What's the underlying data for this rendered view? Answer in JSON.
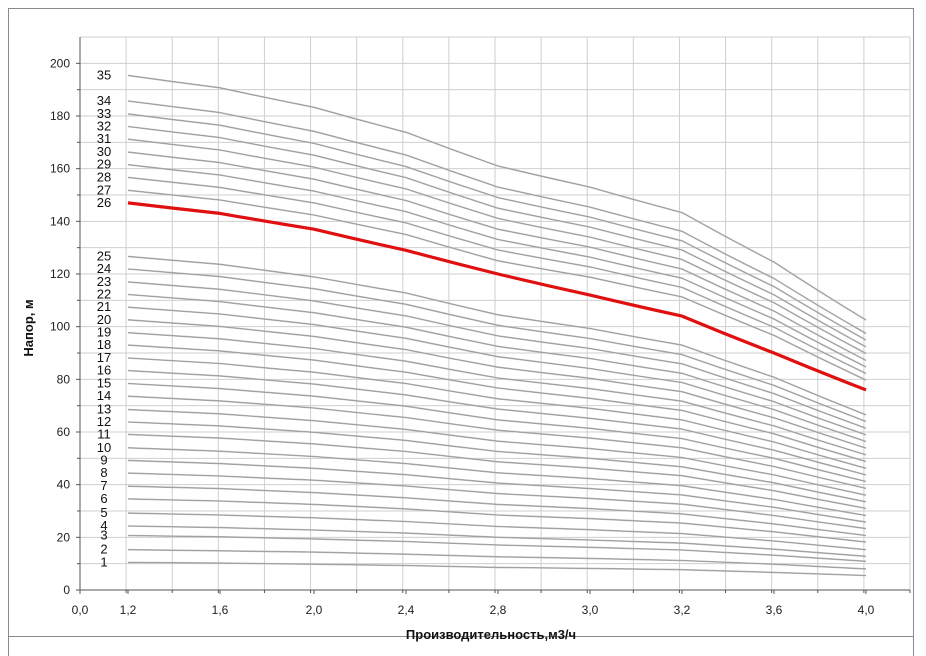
{
  "chart_data": {
    "type": "line",
    "title": "",
    "xlabel": "Производительность,м3/ч",
    "ylabel": "Напор, м",
    "xlim": [
      0.0,
      4.2
    ],
    "ylim": [
      0,
      210
    ],
    "x_ticks": [
      "0,0",
      "1,2",
      "1,6",
      "2,0",
      "2,4",
      "2,8",
      "3,0",
      "3,2",
      "3,6",
      "4,0"
    ],
    "y_ticks": [
      "0",
      "20",
      "40",
      "60",
      "80",
      "100",
      "120",
      "140",
      "160",
      "180",
      "200"
    ],
    "grid": true,
    "legend": "none",
    "highlight_color": "#e01010",
    "curve_color": "#b8b8b8",
    "x": [
      1.2,
      1.6,
      2.0,
      2.4,
      2.8,
      3.0,
      3.2,
      3.6,
      4.0
    ],
    "highlighted_series": "26",
    "series": [
      {
        "name": "1",
        "values": [
          10.5,
          10.2,
          9.8,
          9.3,
          8.6,
          8.2,
          7.7,
          6.7,
          5.5
        ]
      },
      {
        "name": "2",
        "values": [
          15.3,
          14.9,
          14.4,
          13.6,
          12.6,
          12.0,
          11.2,
          9.8,
          8.0
        ]
      },
      {
        "name": "3",
        "values": [
          20.7,
          20.2,
          19.4,
          18.4,
          17.1,
          16.2,
          15.2,
          13.2,
          10.9
        ]
      },
      {
        "name": "4",
        "values": [
          24.3,
          23.7,
          22.8,
          21.6,
          20.0,
          19.0,
          17.8,
          15.5,
          12.8
        ]
      },
      {
        "name": "5",
        "values": [
          29.2,
          28.5,
          27.4,
          26.0,
          24.1,
          22.9,
          21.4,
          18.6,
          15.3
        ]
      },
      {
        "name": "6",
        "values": [
          34.6,
          33.8,
          32.5,
          30.8,
          28.5,
          27.1,
          25.4,
          22.1,
          18.2
        ]
      },
      {
        "name": "7",
        "values": [
          39.4,
          38.5,
          37.0,
          35.0,
          32.5,
          30.9,
          28.9,
          25.1,
          20.7
        ]
      },
      {
        "name": "8",
        "values": [
          44.4,
          43.3,
          41.7,
          39.5,
          36.6,
          34.8,
          32.6,
          28.3,
          23.3
        ]
      },
      {
        "name": "9",
        "values": [
          49.2,
          48.0,
          46.2,
          43.8,
          40.6,
          38.5,
          36.1,
          31.4,
          25.8
        ]
      },
      {
        "name": "10",
        "values": [
          54.0,
          52.7,
          50.7,
          48.0,
          44.5,
          42.3,
          39.6,
          34.4,
          28.3
        ]
      },
      {
        "name": "11",
        "values": [
          59.1,
          57.7,
          55.5,
          52.6,
          48.7,
          46.3,
          43.4,
          37.7,
          31.0
        ]
      },
      {
        "name": "12",
        "values": [
          63.8,
          62.3,
          59.9,
          56.8,
          52.6,
          50.0,
          46.8,
          40.7,
          33.5
        ]
      },
      {
        "name": "13",
        "values": [
          68.5,
          66.9,
          64.3,
          61.0,
          56.5,
          53.7,
          50.3,
          43.7,
          36.0
        ]
      },
      {
        "name": "14",
        "values": [
          73.6,
          71.8,
          69.1,
          65.5,
          60.7,
          57.7,
          54.0,
          46.9,
          38.6
        ]
      },
      {
        "name": "15",
        "values": [
          78.4,
          76.5,
          73.6,
          69.8,
          64.6,
          61.4,
          57.5,
          50.0,
          41.2
        ]
      },
      {
        "name": "16",
        "values": [
          83.3,
          81.3,
          78.2,
          74.1,
          68.7,
          65.2,
          61.1,
          53.1,
          43.7
        ]
      },
      {
        "name": "17",
        "values": [
          88.1,
          86.0,
          82.7,
          78.4,
          72.6,
          69.0,
          64.6,
          56.2,
          46.2
        ]
      },
      {
        "name": "18",
        "values": [
          93.0,
          90.8,
          87.3,
          82.7,
          76.7,
          72.8,
          68.2,
          59.3,
          48.8
        ]
      },
      {
        "name": "19",
        "values": [
          97.7,
          95.4,
          91.7,
          86.9,
          80.5,
          76.5,
          71.7,
          62.3,
          51.3
        ]
      },
      {
        "name": "20",
        "values": [
          102.6,
          100.1,
          96.3,
          91.3,
          84.6,
          80.4,
          75.3,
          65.4,
          53.9
        ]
      },
      {
        "name": "21",
        "values": [
          107.4,
          104.8,
          100.8,
          95.6,
          88.6,
          84.1,
          78.8,
          68.5,
          56.4
        ]
      },
      {
        "name": "22",
        "values": [
          112.2,
          109.5,
          105.3,
          99.8,
          92.5,
          87.9,
          82.3,
          71.5,
          58.9
        ]
      },
      {
        "name": "23",
        "values": [
          117.0,
          114.2,
          109.8,
          104.1,
          96.5,
          91.7,
          85.9,
          74.6,
          61.4
        ]
      },
      {
        "name": "24",
        "values": [
          121.9,
          119.0,
          114.4,
          108.5,
          100.5,
          95.5,
          89.4,
          77.7,
          64.0
        ]
      },
      {
        "name": "25",
        "values": [
          126.7,
          123.7,
          118.9,
          112.8,
          104.5,
          99.3,
          93.0,
          80.8,
          66.5
        ]
      },
      {
        "name": "26",
        "values": [
          147.0,
          143.0,
          137.0,
          129.0,
          120.0,
          112.0,
          104.0,
          90.0,
          76.0
        ]
      },
      {
        "name": "27",
        "values": [
          151.8,
          148.1,
          142.4,
          135.0,
          125.0,
          118.8,
          111.3,
          96.7,
          79.7
        ]
      },
      {
        "name": "28",
        "values": [
          156.7,
          152.9,
          147.0,
          139.4,
          129.1,
          122.7,
          114.9,
          99.8,
          82.2
        ]
      },
      {
        "name": "29",
        "values": [
          161.5,
          157.6,
          151.5,
          143.7,
          133.1,
          126.4,
          118.4,
          102.9,
          84.7
        ]
      },
      {
        "name": "30",
        "values": [
          166.3,
          162.3,
          156.0,
          147.9,
          137.0,
          130.2,
          121.9,
          105.9,
          87.2
        ]
      },
      {
        "name": "31",
        "values": [
          171.2,
          167.1,
          160.6,
          152.3,
          141.1,
          134.0,
          125.5,
          109.1,
          89.8
        ]
      },
      {
        "name": "32",
        "values": [
          176.0,
          171.8,
          165.1,
          156.6,
          145.0,
          137.8,
          129.1,
          112.1,
          92.3
        ]
      },
      {
        "name": "33",
        "values": [
          180.8,
          176.5,
          169.6,
          160.8,
          149.0,
          141.6,
          132.6,
          115.2,
          94.9
        ]
      },
      {
        "name": "34",
        "values": [
          185.7,
          181.3,
          174.2,
          165.2,
          153.0,
          145.4,
          136.2,
          118.3,
          97.4
        ]
      },
      {
        "name": "35",
        "values": [
          195.4,
          190.7,
          183.3,
          173.8,
          161.0,
          153.0,
          143.3,
          124.5,
          102.5
        ]
      }
    ]
  }
}
